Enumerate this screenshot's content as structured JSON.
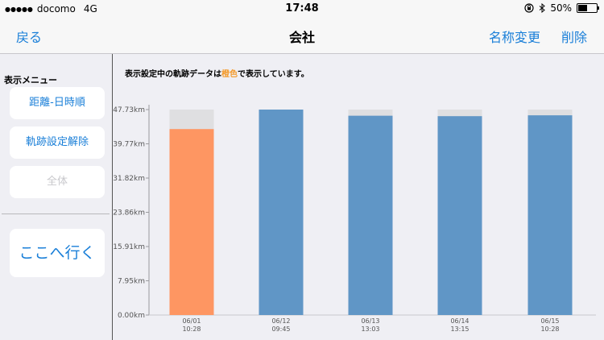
{
  "status_bar": {
    "signal_dots": "●●●●●",
    "carrier": "docomo",
    "network": "4G",
    "time": "17:48",
    "battery_percent": "50%",
    "battery_level": 0.5,
    "icons": [
      "orientation-lock-icon",
      "bluetooth-icon",
      "battery-icon"
    ]
  },
  "nav": {
    "back": "戻る",
    "title": "会社",
    "rename": "名称変更",
    "delete": "削除"
  },
  "sidebar": {
    "title": "表示メニュー",
    "buttons": [
      "距離-日時順",
      "軌跡設定解除",
      "全体"
    ],
    "go_here": "ここへ行く"
  },
  "chart_heading": {
    "before": "表示設定中の軌跡データは",
    "highlight": "橙色",
    "after": "で表示しています。"
  },
  "colors": {
    "accent": "#1a7fd8",
    "selected_bar": "#fe9662",
    "bar": "#6096c6",
    "bar_background": "#dfdfe1",
    "highlight_text": "#f39a2c"
  },
  "chart_data": {
    "type": "bar",
    "title": "",
    "xlabel": "",
    "ylabel": "",
    "yticks": [
      "0.00km",
      "7.95km",
      "15.91km",
      "23.86km",
      "31.82km",
      "39.77km",
      "47.73km"
    ],
    "ylim": [
      0,
      47.73
    ],
    "categories": [
      [
        "06/01",
        "10:28"
      ],
      [
        "06/12",
        "09:45"
      ],
      [
        "06/13",
        "13:03"
      ],
      [
        "06/14",
        "13:15"
      ],
      [
        "06/15",
        "10:28"
      ]
    ],
    "values": [
      43.2,
      47.73,
      46.3,
      46.2,
      46.4
    ],
    "max_background": 47.73,
    "selected_index": 0
  }
}
